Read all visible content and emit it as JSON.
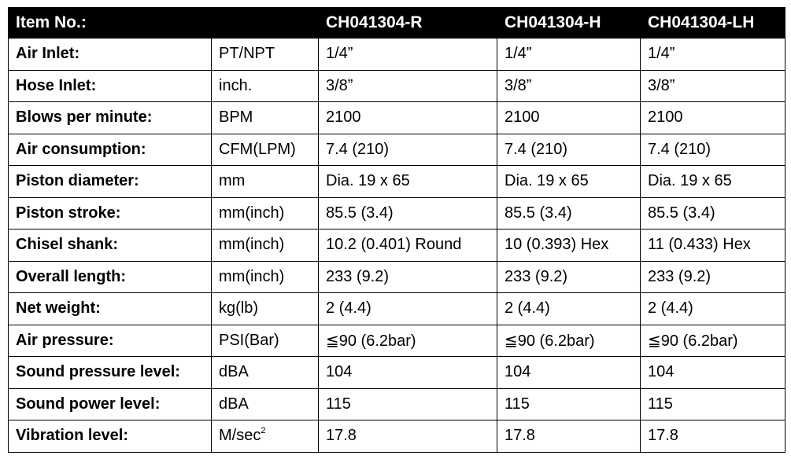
{
  "header": {
    "item_label": "Item No.:",
    "unit_label": "",
    "models": [
      "CH041304-R",
      "CH041304-H",
      "CH041304-LH"
    ]
  },
  "rows": [
    {
      "label": "Air Inlet:",
      "unit": "PT/NPT",
      "values": [
        "1/4”",
        "1/4”",
        "1/4”"
      ]
    },
    {
      "label": "Hose Inlet:",
      "unit": "inch.",
      "values": [
        "3/8”",
        "3/8”",
        "3/8”"
      ]
    },
    {
      "label": "Blows per minute:",
      "unit": "BPM",
      "values": [
        "2100",
        "2100",
        "2100"
      ]
    },
    {
      "label": "Air consumption:",
      "unit": "CFM(LPM)",
      "values": [
        "7.4 (210)",
        "7.4 (210)",
        "7.4 (210)"
      ]
    },
    {
      "label": "Piston diameter:",
      "unit": "mm",
      "values": [
        "Dia. 19 x 65",
        "Dia. 19 x 65",
        "Dia. 19 x 65"
      ]
    },
    {
      "label": "Piston stroke:",
      "unit": "mm(inch)",
      "values": [
        "85.5 (3.4)",
        "85.5 (3.4)",
        "85.5 (3.4)"
      ]
    },
    {
      "label": "Chisel shank:",
      "unit": "mm(inch)",
      "values": [
        "10.2 (0.401) Round",
        "10 (0.393) Hex",
        "11 (0.433) Hex"
      ]
    },
    {
      "label": "Overall length:",
      "unit": "mm(inch)",
      "values": [
        "233 (9.2)",
        "233 (9.2)",
        "233 (9.2)"
      ]
    },
    {
      "label": "Net weight:",
      "unit": "kg(lb)",
      "values": [
        "2 (4.4)",
        "2 (4.4)",
        "2 (4.4)"
      ]
    },
    {
      "label": "Air pressure:",
      "unit": "PSI(Bar)",
      "values": [
        "≦90 (6.2bar)",
        "≦90 (6.2bar)",
        "≦90 (6.2bar)"
      ]
    },
    {
      "label": "Sound pressure level:",
      "unit": "dBA",
      "values": [
        "104",
        "104",
        "104"
      ]
    },
    {
      "label": "Sound power level:",
      "unit": "dBA",
      "values": [
        "115",
        "115",
        "115"
      ]
    },
    {
      "label": "Vibration level:",
      "unit": "M/sec",
      "unit_sup": "2",
      "values": [
        "17.8",
        "17.8",
        "17.8"
      ]
    }
  ]
}
